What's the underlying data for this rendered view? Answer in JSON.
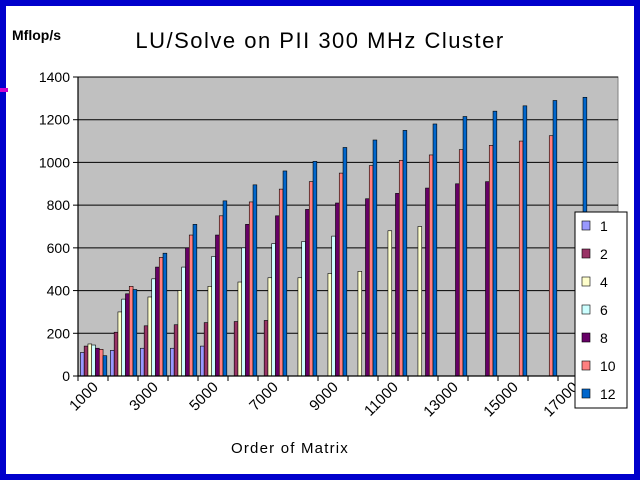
{
  "chart_data": {
    "type": "bar",
    "title": "LU/Solve on PII 300 MHz Cluster",
    "ylabel": "Mflop/s",
    "xlabel": "Order of Matrix",
    "ylim": [
      0,
      1400
    ],
    "yticks": [
      "0",
      "200",
      "400",
      "600",
      "800",
      "1000",
      "1200",
      "1400"
    ],
    "categories": [
      "1000",
      "2000",
      "3000",
      "4000",
      "5000",
      "6000",
      "7000",
      "8000",
      "9000",
      "10000",
      "11000",
      "12000",
      "13000",
      "14000",
      "15000",
      "16000",
      "17000",
      "18000"
    ],
    "xtick_labels": [
      "1000",
      "3000",
      "5000",
      "7000",
      "9000",
      "11000",
      "13000",
      "15000",
      "17000"
    ],
    "legend_position": "right",
    "grid": true,
    "colors": {
      "plot_background": "#c0c0c0",
      "frame": "#0000cc",
      "accent": "#cc00cc"
    },
    "series": [
      {
        "name": "1",
        "color": "#9999ff",
        "values": [
          110,
          120,
          130,
          130,
          140,
          null,
          null,
          null,
          null,
          null,
          null,
          null,
          null,
          null,
          null,
          null,
          null,
          null
        ]
      },
      {
        "name": "2",
        "color": "#993366",
        "values": [
          140,
          205,
          235,
          240,
          250,
          255,
          260,
          null,
          null,
          null,
          null,
          null,
          null,
          null,
          null,
          null,
          null,
          null
        ]
      },
      {
        "name": "4",
        "color": "#ffffcc",
        "values": [
          150,
          300,
          370,
          400,
          420,
          440,
          460,
          460,
          480,
          490,
          680,
          700,
          null,
          null,
          null,
          null,
          null,
          null
        ]
      },
      {
        "name": "6",
        "color": "#ccffff",
        "values": [
          145,
          360,
          455,
          510,
          560,
          600,
          620,
          630,
          655,
          null,
          null,
          null,
          null,
          null,
          null,
          null,
          null,
          null
        ]
      },
      {
        "name": "8",
        "color": "#660066",
        "values": [
          130,
          385,
          510,
          600,
          660,
          710,
          750,
          780,
          810,
          830,
          855,
          880,
          900,
          910,
          null,
          null,
          null,
          null
        ]
      },
      {
        "name": "10",
        "color": "#ff8080",
        "values": [
          125,
          420,
          555,
          660,
          750,
          815,
          875,
          910,
          950,
          985,
          1010,
          1035,
          1060,
          1080,
          1100,
          1125,
          null,
          null
        ]
      },
      {
        "name": "12",
        "color": "#0066cc",
        "values": [
          95,
          405,
          575,
          710,
          820,
          895,
          960,
          1005,
          1070,
          1105,
          1150,
          1180,
          1215,
          1240,
          1265,
          1290,
          1305,
          null
        ]
      }
    ]
  }
}
